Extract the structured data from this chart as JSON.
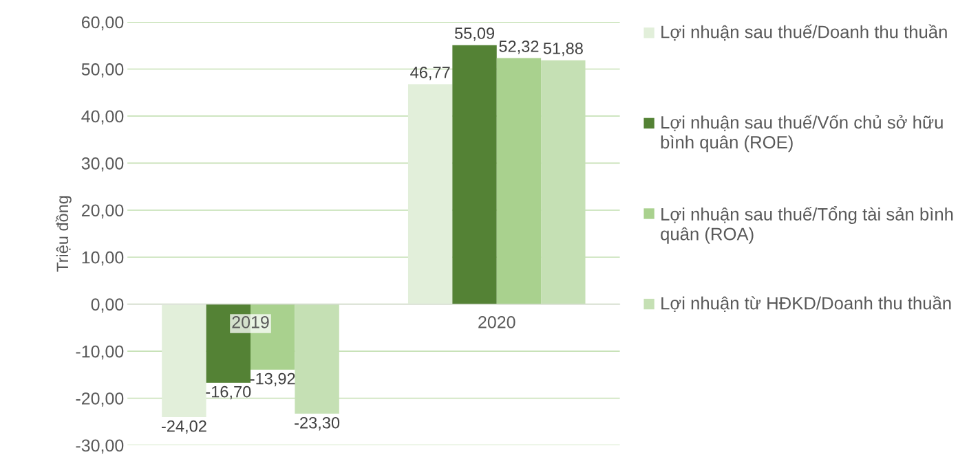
{
  "chart_data": {
    "type": "bar",
    "ylabel": "Triệu đồng",
    "categories": [
      "2019",
      "2020"
    ],
    "series": [
      {
        "name": "Lợi nhuận sau thuế/Doanh thu thuần",
        "color": "#e2efda",
        "values": [
          -24.02,
          46.77
        ],
        "value_labels": [
          "-24,02",
          "46,77"
        ]
      },
      {
        "name": "Lợi nhuận sau thuế/Vốn chủ sở hữu bình quân (ROE)",
        "color": "#548235",
        "values": [
          -16.7,
          55.09
        ],
        "value_labels": [
          "-16,70",
          "55,09"
        ]
      },
      {
        "name": "Lợi nhuận sau thuế/Tổng tài sản bình quân (ROA)",
        "color": "#a9d18e",
        "values": [
          -13.92,
          52.32
        ],
        "value_labels": [
          "-13,92",
          "52,32"
        ]
      },
      {
        "name": "Lợi nhuận từ HĐKD/Doanh thu thuần",
        "color": "#c5e0b4",
        "values": [
          -23.3,
          51.88
        ],
        "value_labels": [
          "-23,30",
          "51,88"
        ]
      }
    ],
    "ylim": [
      -30,
      60
    ],
    "yticks": [
      {
        "value": -30,
        "label": "-30,00"
      },
      {
        "value": -20,
        "label": "-20,00"
      },
      {
        "value": -10,
        "label": "-10,00"
      },
      {
        "value": 0,
        "label": "0,00"
      },
      {
        "value": 10,
        "label": "10,00"
      },
      {
        "value": 20,
        "label": "20,00"
      },
      {
        "value": 30,
        "label": "30,00"
      },
      {
        "value": 40,
        "label": "40,00"
      },
      {
        "value": 50,
        "label": "50,00"
      },
      {
        "value": 60,
        "label": "60,00"
      }
    ],
    "grid": "y",
    "legend": "right"
  }
}
